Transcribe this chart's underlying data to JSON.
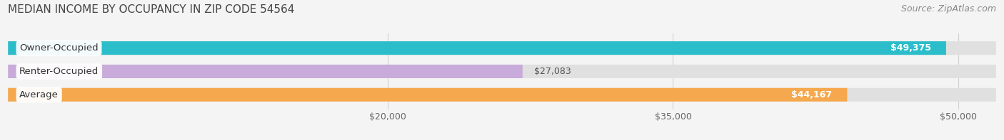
{
  "title": "MEDIAN INCOME BY OCCUPANCY IN ZIP CODE 54564",
  "source": "Source: ZipAtlas.com",
  "categories": [
    "Owner-Occupied",
    "Renter-Occupied",
    "Average"
  ],
  "values": [
    49375,
    27083,
    44167
  ],
  "bar_colors": [
    "#2BBDC9",
    "#C8ABDA",
    "#F5A84D"
  ],
  "value_labels": [
    "$49,375",
    "$27,083",
    "$44,167"
  ],
  "value_inside": [
    true,
    false,
    true
  ],
  "xlim": [
    0,
    52000
  ],
  "xticks": [
    20000,
    35000,
    50000
  ],
  "xtick_labels": [
    "$20,000",
    "$35,000",
    "$50,000"
  ],
  "background_color": "#f4f4f4",
  "bar_bg_color": "#e0e0e0",
  "title_fontsize": 11,
  "source_fontsize": 9,
  "label_fontsize": 9.5,
  "value_fontsize": 9,
  "tick_fontsize": 9,
  "bar_height": 0.58,
  "grid_color": "#d0d0d0"
}
